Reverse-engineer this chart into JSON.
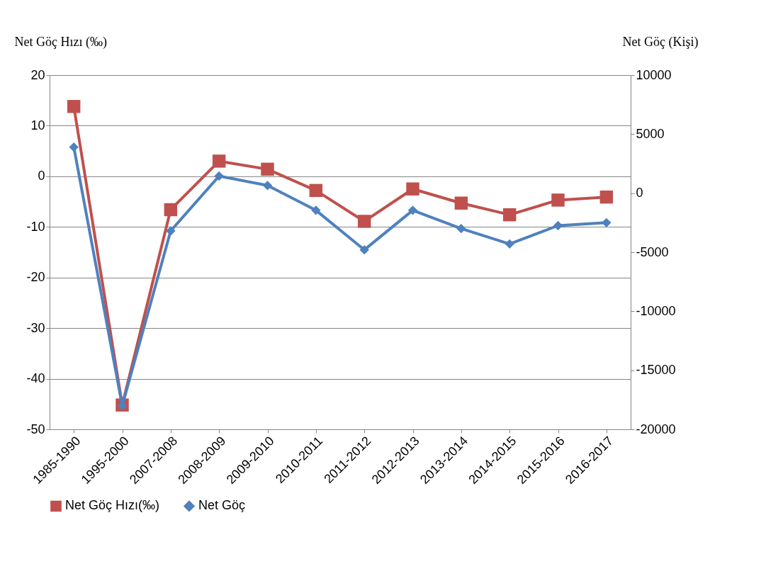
{
  "chart_data": {
    "type": "line",
    "ylabel": "Net Göç Hızı (‰)",
    "y2label": "Net Göç (Kişi)",
    "categories": [
      "1985-1990",
      "1995-2000",
      "2007-2008",
      "2008-2009",
      "2009-2010",
      "2010-2011",
      "2011-2012",
      "2012-2013",
      "2013-2014",
      "2014-2015",
      "2015-2016",
      "2016-2017"
    ],
    "series": [
      {
        "name": "Net Göç Hızı(‰)",
        "color": "#c0504d",
        "marker": "square",
        "values": [
          13.8,
          -45.2,
          -6.6,
          3.0,
          1.4,
          -2.8,
          -8.9,
          -2.5,
          -5.3,
          -7.6,
          -4.7,
          -4.1
        ]
      },
      {
        "name": "Net Göç",
        "color": "#4f81bd",
        "marker": "diamond",
        "axis": "y2",
        "values": [
          3900,
          -18000,
          -3200,
          1450,
          650,
          -1450,
          -4800,
          -1450,
          -3000,
          -4300,
          -2750,
          -2500
        ]
      }
    ],
    "ylim": [
      -50,
      20
    ],
    "yticks": [
      -50,
      -40,
      -30,
      -20,
      -10,
      0,
      10,
      20
    ],
    "y2lim": [
      -20000,
      10000
    ],
    "y2ticks": [
      -20000,
      -15000,
      -10000,
      -5000,
      0,
      5000,
      10000
    ],
    "grid": "y",
    "legend": "bottom",
    "line_style": "solid"
  }
}
